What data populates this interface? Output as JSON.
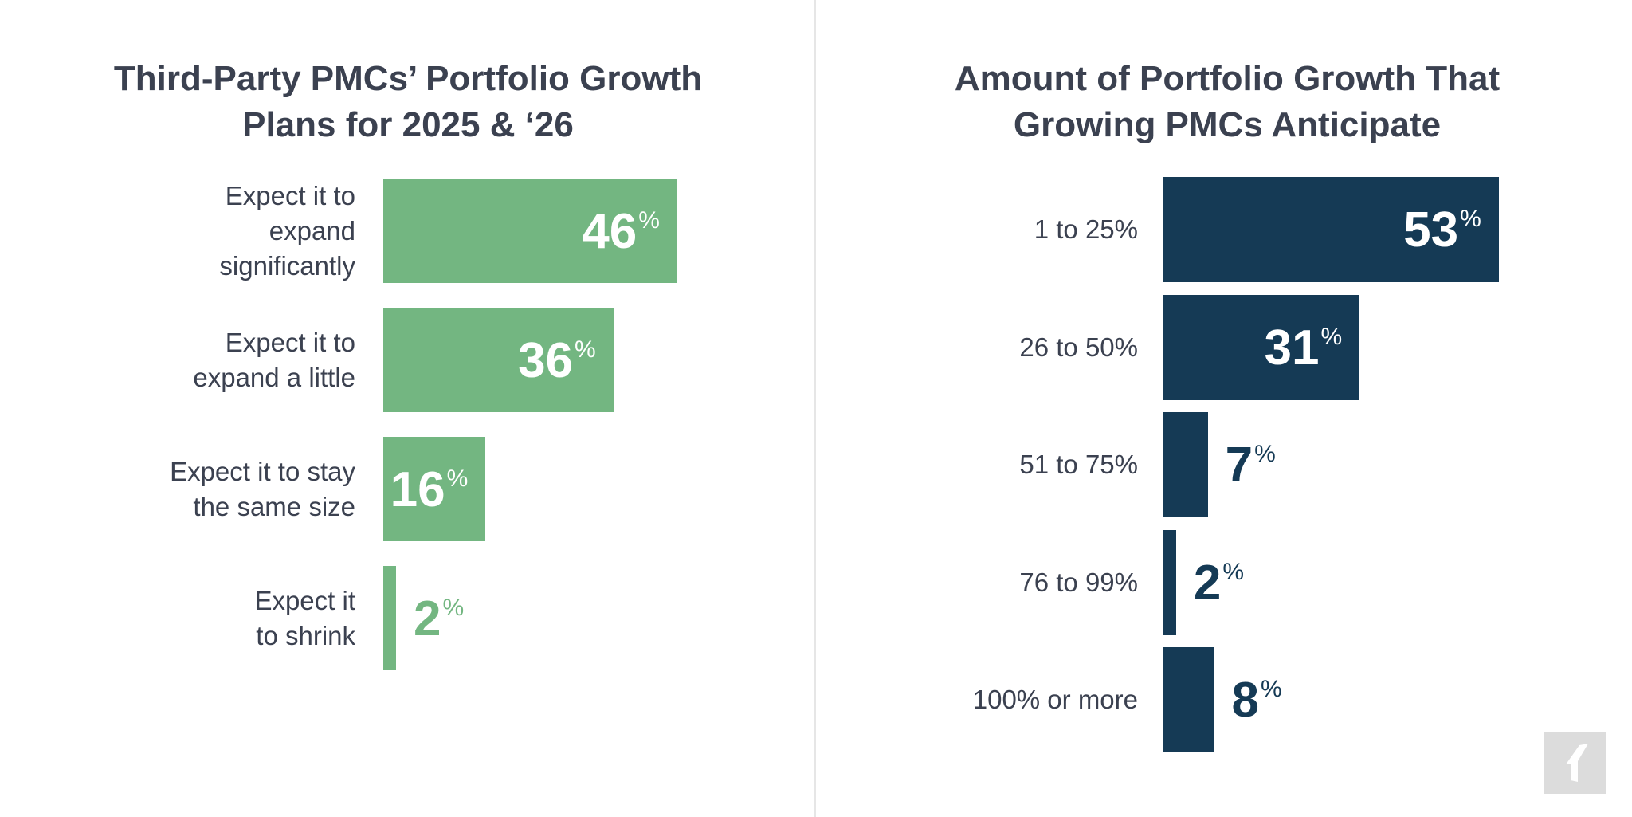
{
  "chart_data": [
    {
      "type": "bar",
      "orientation": "horizontal",
      "title": "Third-Party PMCs’ Portfolio Growth Plans for 2025 & ‘26",
      "title_lines": [
        "Third-Party PMCs’ Portfolio Growth",
        "Plans for 2025 & ‘26"
      ],
      "categories": [
        "Expect it to expand significantly",
        "Expect it to expand a little",
        "Expect it to stay the same size",
        "Expect it to shrink"
      ],
      "category_lines": [
        [
          "Expect it to",
          "expand",
          "significantly"
        ],
        [
          "Expect it to",
          "expand a little"
        ],
        [
          "Expect it to stay",
          "the same size"
        ],
        [
          "Expect it",
          "to shrink"
        ]
      ],
      "values": [
        46,
        36,
        16,
        2
      ],
      "unit": "%",
      "color": "#73b681",
      "grid": false
    },
    {
      "type": "bar",
      "orientation": "horizontal",
      "title": "Amount of Portfolio Growth That Growing PMCs Anticipate",
      "title_lines": [
        "Amount of Portfolio Growth That",
        "Growing PMCs Anticipate"
      ],
      "categories": [
        "1 to 25%",
        "26 to 50%",
        "51 to 75%",
        "76 to 99%",
        "100% or more"
      ],
      "values": [
        53,
        31,
        7,
        2,
        8
      ],
      "unit": "%",
      "color": "#153a55",
      "grid": false
    }
  ],
  "logo": {
    "icon": "publisher-logo-icon"
  }
}
